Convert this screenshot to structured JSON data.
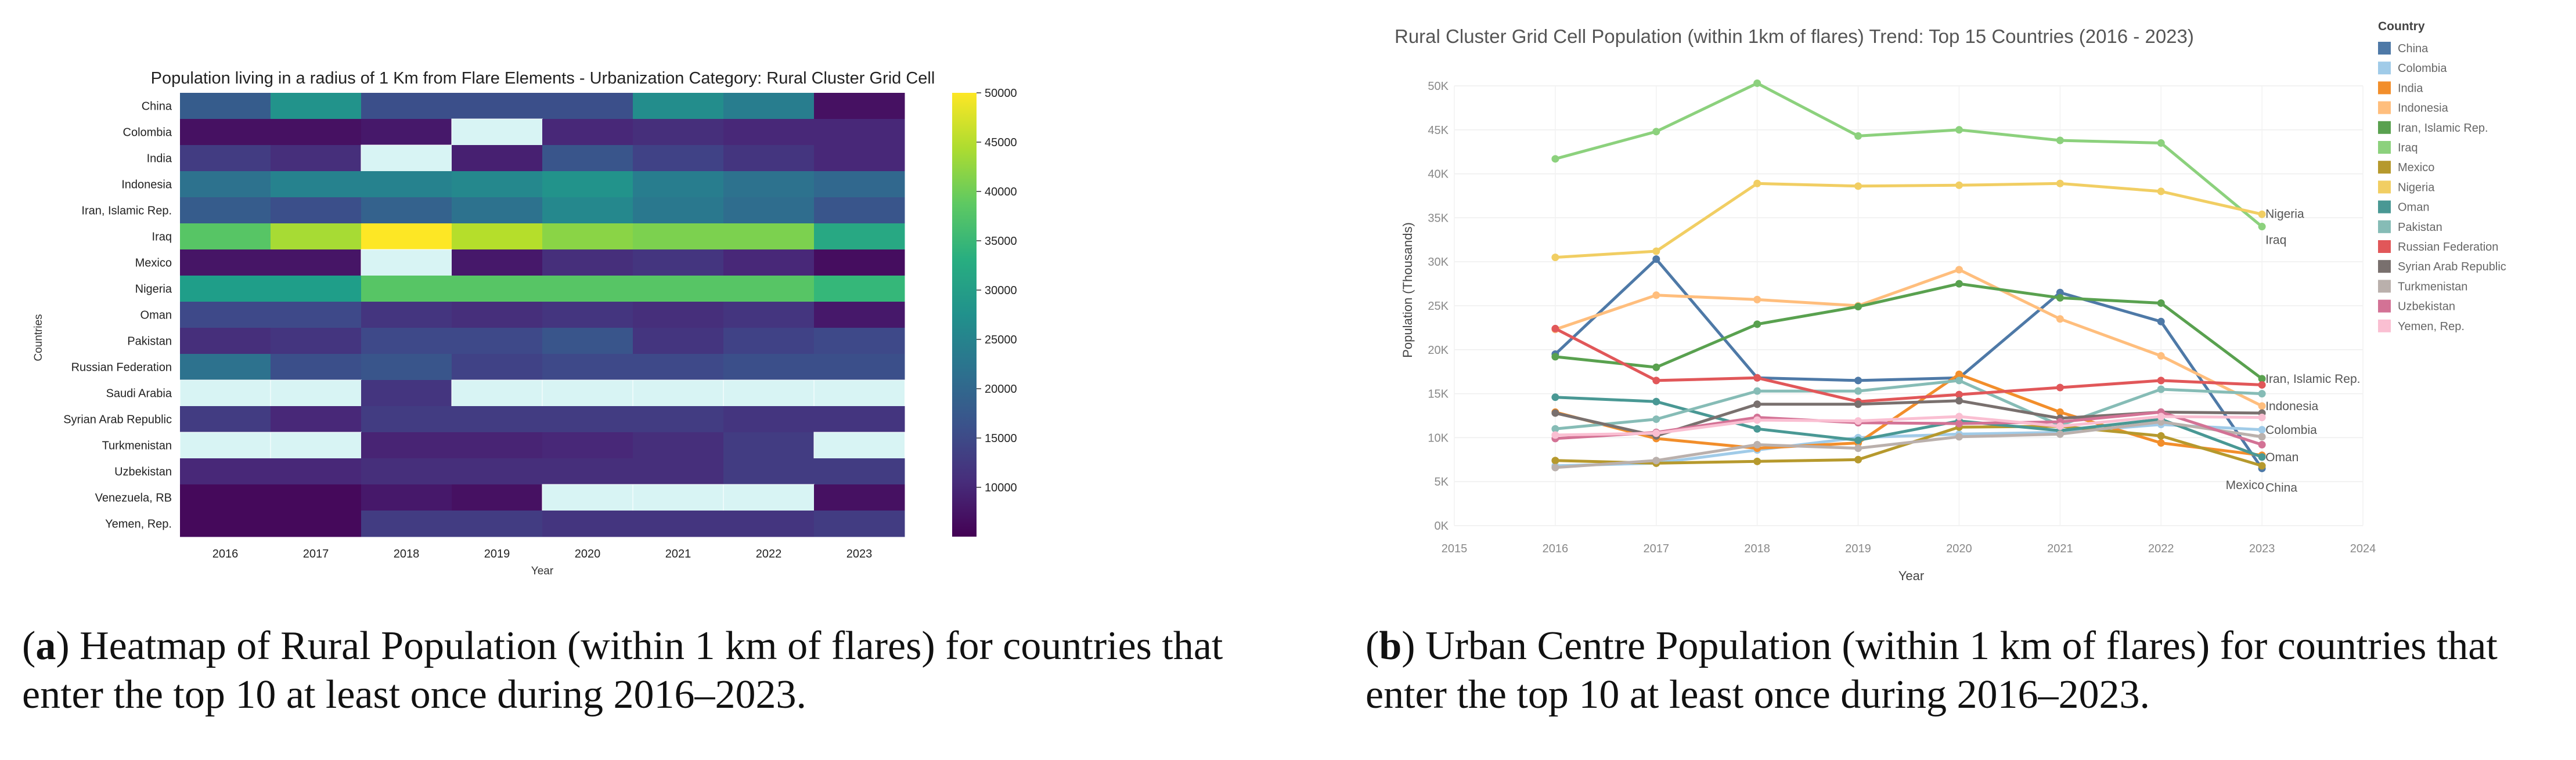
{
  "heatmap": {
    "chart_data": {
      "type": "heatmap",
      "title": "Population living in a radius of 1 Km from Flare Elements - Urbanization Category: Rural Cluster Grid Cell",
      "xlabel": "Year",
      "ylabel": "Countries",
      "years": [
        "2016",
        "2017",
        "2018",
        "2019",
        "2020",
        "2021",
        "2022",
        "2023"
      ],
      "countries": [
        "China",
        "Colombia",
        "India",
        "Indonesia",
        "Iran, Islamic Rep.",
        "Iraq",
        "Mexico",
        "Nigeria",
        "Oman",
        "Pakistan",
        "Russian Federation",
        "Saudi Arabia",
        "Syrian Arab Republic",
        "Turkmenistan",
        "Uzbekistan",
        "Venezuela, RB",
        "Yemen, Rep."
      ],
      "values": [
        [
          18000,
          28000,
          16000,
          16000,
          16000,
          27000,
          24000,
          7000
        ],
        [
          7000,
          7000,
          8000,
          null,
          10000,
          11000,
          10000,
          10000
        ],
        [
          13000,
          11000,
          null,
          9000,
          17000,
          14000,
          12000,
          10000
        ],
        [
          22000,
          25000,
          25000,
          26000,
          28000,
          24000,
          22000,
          20000
        ],
        [
          18000,
          16000,
          19000,
          22000,
          26000,
          23000,
          21000,
          17000
        ],
        [
          38000,
          44000,
          50000,
          45000,
          42000,
          41000,
          41000,
          32000
        ],
        [
          7500,
          7500,
          null,
          8000,
          11000,
          12000,
          10000,
          6500
        ],
        [
          30000,
          30000,
          38000,
          38000,
          38000,
          38000,
          38000,
          35000
        ],
        [
          15000,
          15000,
          12000,
          11000,
          12000,
          11000,
          12000,
          8000
        ],
        [
          11000,
          12000,
          15000,
          15000,
          17000,
          12000,
          14000,
          15000
        ],
        [
          22000,
          16000,
          17000,
          14000,
          15000,
          15000,
          16000,
          16000
        ],
        [
          null,
          null,
          12000,
          null,
          null,
          null,
          null,
          null
        ],
        [
          13000,
          10000,
          13000,
          13000,
          13000,
          13000,
          12000,
          12000
        ],
        [
          null,
          null,
          9500,
          9500,
          10000,
          11000,
          13000,
          null
        ],
        [
          10000,
          10000,
          11000,
          11000,
          11000,
          11000,
          13000,
          13000
        ],
        [
          6000,
          6000,
          8000,
          7000,
          null,
          null,
          null,
          7000
        ],
        [
          6000,
          6000,
          13000,
          13000,
          12000,
          12000,
          12000,
          13000
        ]
      ],
      "vmin": 5000,
      "vmax": 50000,
      "colorbar_ticks": [
        "50000",
        "45000",
        "40000",
        "35000",
        "30000",
        "25000",
        "20000",
        "15000",
        "10000"
      ]
    }
  },
  "linechart": {
    "chart_data": {
      "type": "line",
      "title": "Rural Cluster Grid Cell Population (within 1km of flares) Trend: Top 15 Countries (2016 - 2023)",
      "xlabel": "Year",
      "ylabel": "Population (Thousands)",
      "xlim": [
        2015,
        2024
      ],
      "ylim": [
        0,
        50000
      ],
      "x_ticks": [
        "2015",
        "2016",
        "2017",
        "2018",
        "2019",
        "2020",
        "2021",
        "2022",
        "2023",
        "2024"
      ],
      "y_ticks": [
        "0K",
        "5K",
        "10K",
        "15K",
        "20K",
        "25K",
        "30K",
        "35K",
        "40K",
        "45K",
        "50K"
      ],
      "x": [
        2016,
        2017,
        2018,
        2019,
        2020,
        2021,
        2022,
        2023
      ],
      "legend_title": "Country",
      "series": [
        {
          "name": "China",
          "color": "#4e79a7",
          "values": [
            19500,
            30300,
            16800,
            16500,
            16800,
            26500,
            23200,
            6500
          ]
        },
        {
          "name": "Colombia",
          "color": "#a0cbe8",
          "values": [
            6800,
            7100,
            8600,
            10000,
            10400,
            10600,
            11500,
            10900
          ]
        },
        {
          "name": "India",
          "color": "#f28e2b",
          "values": [
            12900,
            9900,
            8800,
            9400,
            17200,
            12900,
            9400,
            8000
          ]
        },
        {
          "name": "Indonesia",
          "color": "#ffbe7d",
          "values": [
            22300,
            26200,
            25700,
            25000,
            29100,
            23500,
            19300,
            13600
          ]
        },
        {
          "name": "Iran, Islamic Rep.",
          "color": "#59a14f",
          "values": [
            19200,
            18000,
            22900,
            24900,
            27500,
            25900,
            25300,
            16700
          ]
        },
        {
          "name": "Iraq",
          "color": "#8cd17d",
          "values": [
            41700,
            44800,
            50300,
            44300,
            45000,
            43800,
            43500,
            34000
          ]
        },
        {
          "name": "Mexico",
          "color": "#b6992d",
          "values": [
            7400,
            7100,
            7300,
            7500,
            11200,
            11300,
            10200,
            6800
          ]
        },
        {
          "name": "Nigeria",
          "color": "#f1ce63",
          "values": [
            30500,
            31200,
            38900,
            38600,
            38700,
            38900,
            38000,
            35400
          ]
        },
        {
          "name": "Oman",
          "color": "#499894",
          "values": [
            14600,
            14100,
            11000,
            9700,
            11900,
            10800,
            12100,
            7800
          ]
        },
        {
          "name": "Pakistan",
          "color": "#86bcb6",
          "values": [
            11000,
            12100,
            15300,
            15300,
            16500,
            11400,
            15500,
            15000
          ]
        },
        {
          "name": "Russian Federation",
          "color": "#e15759",
          "values": [
            22400,
            16500,
            16800,
            14100,
            14900,
            15700,
            16500,
            16000
          ]
        },
        {
          "name": "Syrian Arab Republic",
          "color": "#79706e",
          "values": [
            12800,
            10200,
            13800,
            13800,
            14200,
            12200,
            12900,
            12800
          ]
        },
        {
          "name": "Turkmenistan",
          "color": "#bab0ac",
          "values": [
            6600,
            7400,
            9200,
            8800,
            10100,
            10400,
            11800,
            10100
          ]
        },
        {
          "name": "Uzbekistan",
          "color": "#d37295",
          "values": [
            9900,
            10600,
            12300,
            11700,
            11600,
            11800,
            12900,
            9200
          ]
        },
        {
          "name": "Yemen, Rep.",
          "color": "#fabfd2",
          "values": [
            10300,
            10500,
            12000,
            11900,
            12400,
            11300,
            12400,
            12300
          ]
        }
      ],
      "end_labels": [
        {
          "series": "Nigeria",
          "text": "Nigeria"
        },
        {
          "series": "Iraq",
          "text": "Iraq"
        },
        {
          "series": "Iran, Islamic Rep.",
          "text": "Iran, Islamic Rep."
        },
        {
          "series": "Indonesia",
          "text": "Indonesia"
        },
        {
          "series": "Colombia",
          "text": "Colombia"
        },
        {
          "series": "Oman",
          "text": "Oman"
        },
        {
          "series": "Mexico",
          "text": "Mexico"
        },
        {
          "series": "China",
          "text": "China"
        }
      ]
    }
  },
  "captions": {
    "left_letter": "a",
    "left_text": "Heatmap of Rural Population (within 1 km of flares) for countries that enter the top 10 at least once during 2016–2023.",
    "right_letter": "b",
    "right_text": "Urban Centre Population (within 1 km of flares) for countries that enter the top 10 at least once during 2016–2023."
  }
}
